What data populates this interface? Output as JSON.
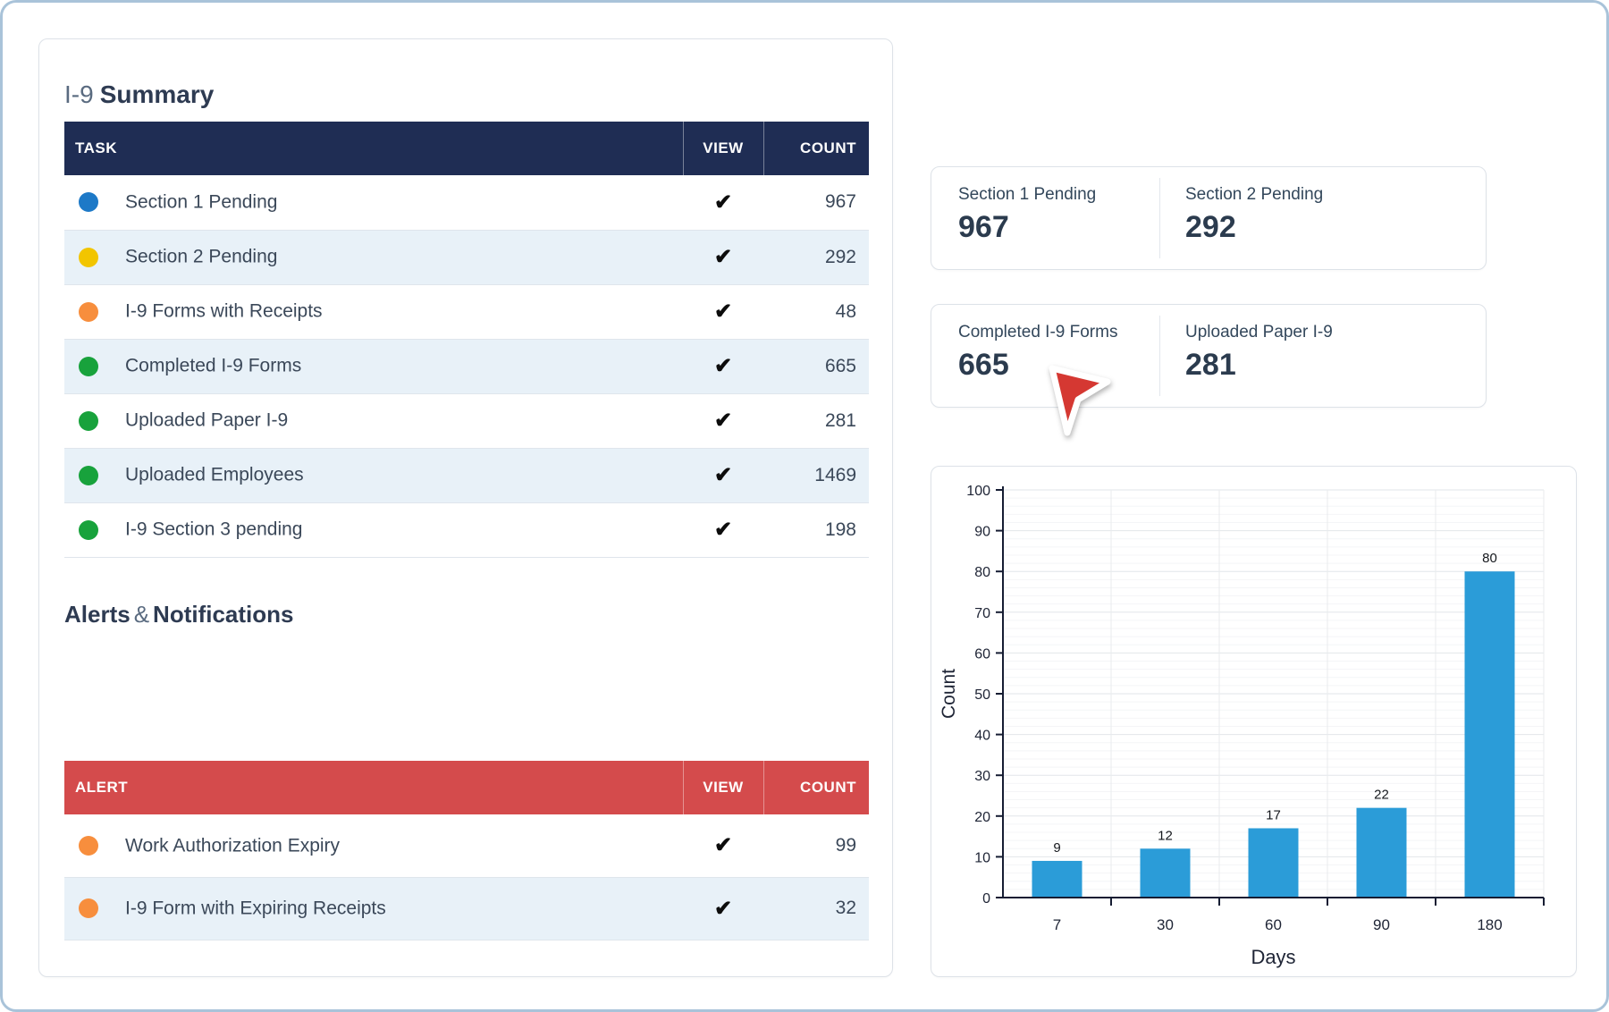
{
  "summary": {
    "title_prefix": "I-9",
    "title_main": "Summary",
    "table": {
      "headers": [
        "TASK",
        "VIEW",
        "COUNT"
      ],
      "check_icon": "✔",
      "rows": [
        {
          "dot_color": "#1d79c7",
          "label": "Section 1 Pending",
          "count": "967"
        },
        {
          "dot_color": "#f2c500",
          "label": "Section 2 Pending",
          "count": "292"
        },
        {
          "dot_color": "#f78e3d",
          "label": "I-9 Forms with Receipts",
          "count": "48"
        },
        {
          "dot_color": "#18a23c",
          "label": "Completed I-9 Forms",
          "count": "665"
        },
        {
          "dot_color": "#18a23c",
          "label": "Uploaded Paper I-9",
          "count": "281"
        },
        {
          "dot_color": "#18a23c",
          "label": "Uploaded Employees",
          "count": "1469"
        },
        {
          "dot_color": "#18a23c",
          "label": "I-9 Section 3 pending",
          "count": "198"
        }
      ]
    }
  },
  "alerts": {
    "title_part1": "Alerts",
    "title_amp": "&",
    "title_part2": "Notifications",
    "table": {
      "headers": [
        "ALERT",
        "VIEW",
        "COUNT"
      ],
      "check_icon": "✔",
      "rows": [
        {
          "dot_color": "#f78e3d",
          "label": "Work Authorization Expiry",
          "count": "99"
        },
        {
          "dot_color": "#f78e3d",
          "label": "I-9 Form with Expiring Receipts",
          "count": "32"
        }
      ]
    }
  },
  "stat_cards": [
    {
      "cells": [
        {
          "label": "Section 1 Pending",
          "value": "967"
        },
        {
          "label": "Section 2 Pending",
          "value": "292"
        }
      ]
    },
    {
      "cells": [
        {
          "label": "Completed I-9 Forms",
          "value": "665"
        },
        {
          "label": "Uploaded Paper I-9",
          "value": "281"
        }
      ]
    }
  ],
  "chart_data": {
    "type": "bar",
    "categories": [
      "7",
      "30",
      "60",
      "90",
      "180"
    ],
    "values": [
      9,
      12,
      17,
      22,
      80
    ],
    "title": "",
    "xlabel": "Days",
    "ylabel": "Count",
    "ylim": [
      0,
      100
    ],
    "ytick_step": 10,
    "bar_color": "#2b9cd8",
    "grid": true,
    "legend": "none"
  },
  "colors": {
    "outer_border": "#a9c3d9",
    "summary_header_bg": "#1f2d54",
    "alert_header_bg": "#d44b4c",
    "row_alt_bg": "#e8f1f8",
    "cursor_red": "#d53832",
    "axis_color": "#161d33",
    "text_dark": "#2e3b52"
  }
}
